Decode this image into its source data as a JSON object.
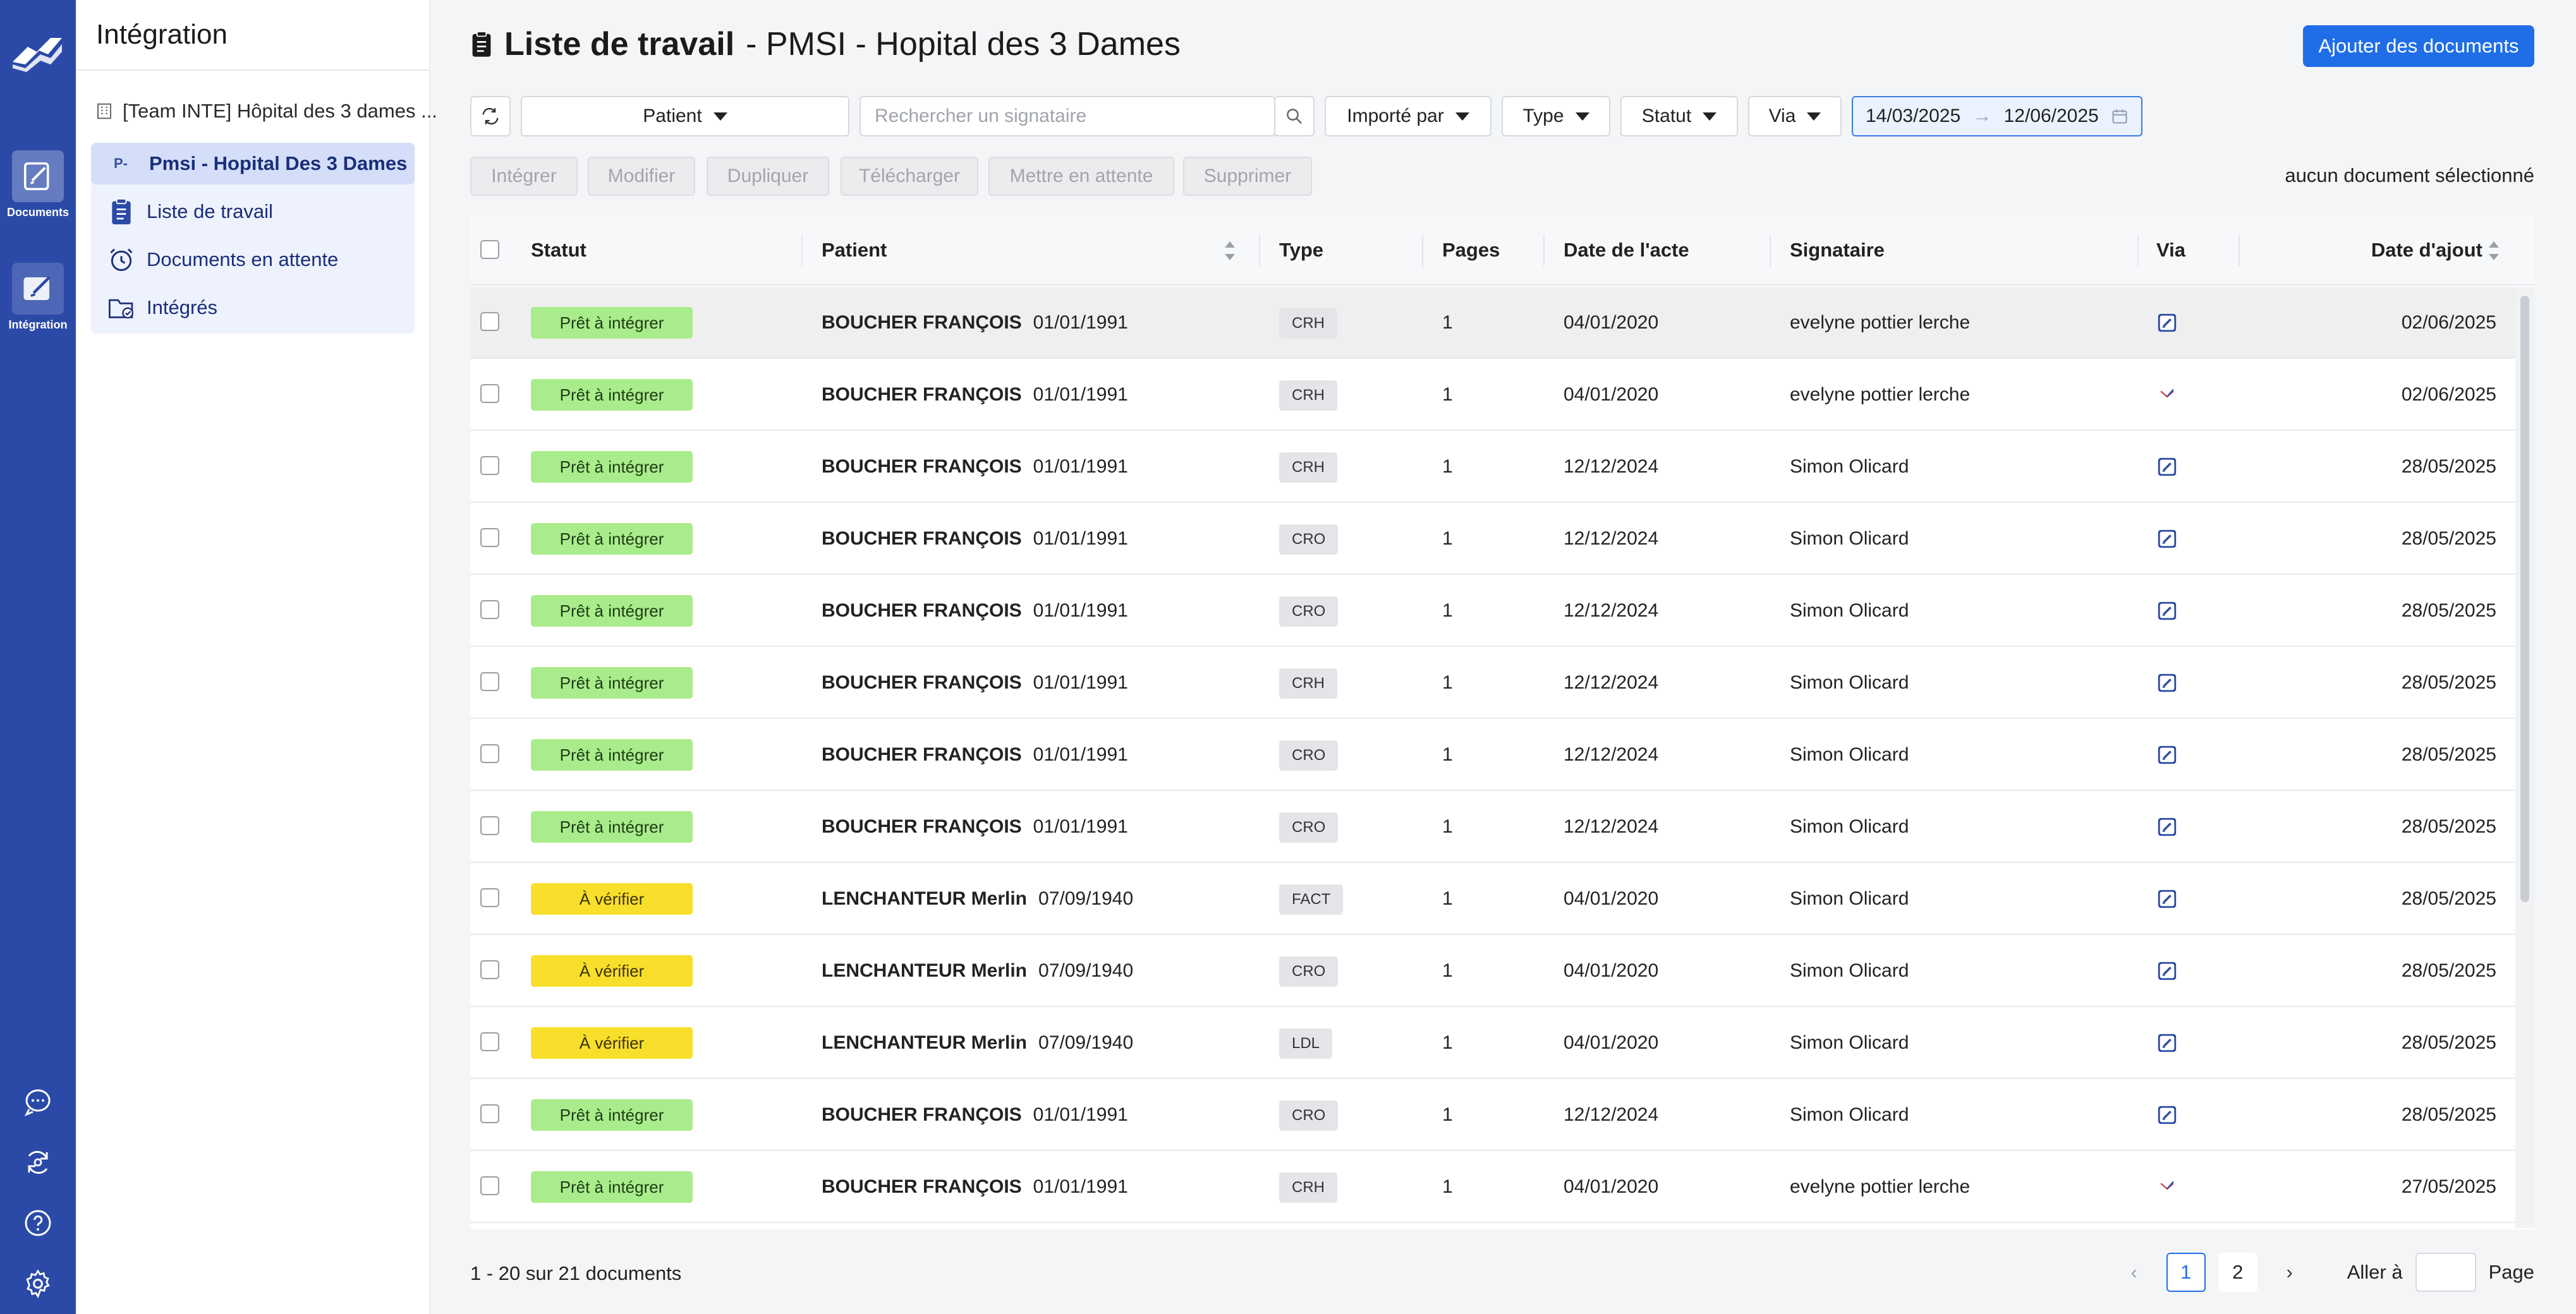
{
  "rail": {
    "items": [
      {
        "label": "Documents"
      },
      {
        "label": "Intégration"
      }
    ]
  },
  "sidebar": {
    "title": "Intégration",
    "team": "[Team INTE] Hôpital des 3 dames ...",
    "selected_prefix": "P-",
    "selected": "Pmsi - Hopital Des 3 Dames",
    "items": [
      {
        "label": "Liste de travail"
      },
      {
        "label": "Documents en attente"
      },
      {
        "label": "Intégrés"
      }
    ]
  },
  "header": {
    "title_bold": "Liste de travail",
    "title_rest": "- PMSI - Hopital des 3 Dames",
    "add_button": "Ajouter des documents"
  },
  "filters": {
    "patient": "Patient",
    "search_placeholder": "Rechercher un signataire",
    "imported_by": "Importé par",
    "type": "Type",
    "status": "Statut",
    "via": "Via",
    "date_from": "14/03/2025",
    "date_arrow": "→",
    "date_to": "12/06/2025"
  },
  "actions": {
    "integrate": "Intégrer",
    "modify": "Modifier",
    "duplicate": "Dupliquer",
    "download": "Télécharger",
    "hold": "Mettre en attente",
    "delete": "Supprimer",
    "selection_info": "aucun document sélectionné"
  },
  "table": {
    "columns": {
      "status": "Statut",
      "patient": "Patient",
      "type": "Type",
      "pages": "Pages",
      "act_date": "Date de l'acte",
      "signer": "Signataire",
      "via": "Via",
      "added_date": "Date d'ajout"
    },
    "rows": [
      {
        "status": "Prêt à intégrer",
        "status_color": "green",
        "name": "BOUCHER FRANÇOIS",
        "dob": "01/01/1991",
        "type": "CRH",
        "pages": "1",
        "act_date": "04/01/2020",
        "signer": "evelyne pottier lerche",
        "via": "edit-icon",
        "added": "02/06/2025"
      },
      {
        "status": "Prêt à intégrer",
        "status_color": "green",
        "name": "BOUCHER FRANÇOIS",
        "dob": "01/01/1991",
        "type": "CRH",
        "pages": "1",
        "act_date": "04/01/2020",
        "signer": "evelyne pottier lerche",
        "via": "mail-icon",
        "added": "02/06/2025"
      },
      {
        "status": "Prêt à intégrer",
        "status_color": "green",
        "name": "BOUCHER FRANÇOIS",
        "dob": "01/01/1991",
        "type": "CRH",
        "pages": "1",
        "act_date": "12/12/2024",
        "signer": "Simon Olicard",
        "via": "edit-icon",
        "added": "28/05/2025"
      },
      {
        "status": "Prêt à intégrer",
        "status_color": "green",
        "name": "BOUCHER FRANÇOIS",
        "dob": "01/01/1991",
        "type": "CRO",
        "pages": "1",
        "act_date": "12/12/2024",
        "signer": "Simon Olicard",
        "via": "edit-icon",
        "added": "28/05/2025"
      },
      {
        "status": "Prêt à intégrer",
        "status_color": "green",
        "name": "BOUCHER FRANÇOIS",
        "dob": "01/01/1991",
        "type": "CRO",
        "pages": "1",
        "act_date": "12/12/2024",
        "signer": "Simon Olicard",
        "via": "edit-icon",
        "added": "28/05/2025"
      },
      {
        "status": "Prêt à intégrer",
        "status_color": "green",
        "name": "BOUCHER FRANÇOIS",
        "dob": "01/01/1991",
        "type": "CRH",
        "pages": "1",
        "act_date": "12/12/2024",
        "signer": "Simon Olicard",
        "via": "edit-icon",
        "added": "28/05/2025"
      },
      {
        "status": "Prêt à intégrer",
        "status_color": "green",
        "name": "BOUCHER FRANÇOIS",
        "dob": "01/01/1991",
        "type": "CRO",
        "pages": "1",
        "act_date": "12/12/2024",
        "signer": "Simon Olicard",
        "via": "edit-icon",
        "added": "28/05/2025"
      },
      {
        "status": "Prêt à intégrer",
        "status_color": "green",
        "name": "BOUCHER FRANÇOIS",
        "dob": "01/01/1991",
        "type": "CRO",
        "pages": "1",
        "act_date": "12/12/2024",
        "signer": "Simon Olicard",
        "via": "edit-icon",
        "added": "28/05/2025"
      },
      {
        "status": "À vérifier",
        "status_color": "yellow",
        "name": "LENCHANTEUR Merlin",
        "dob": "07/09/1940",
        "type": "FACT",
        "pages": "1",
        "act_date": "04/01/2020",
        "signer": "Simon Olicard",
        "via": "edit-icon",
        "added": "28/05/2025"
      },
      {
        "status": "À vérifier",
        "status_color": "yellow",
        "name": "LENCHANTEUR Merlin",
        "dob": "07/09/1940",
        "type": "CRO",
        "pages": "1",
        "act_date": "04/01/2020",
        "signer": "Simon Olicard",
        "via": "edit-icon",
        "added": "28/05/2025"
      },
      {
        "status": "À vérifier",
        "status_color": "yellow",
        "name": "LENCHANTEUR Merlin",
        "dob": "07/09/1940",
        "type": "LDL",
        "pages": "1",
        "act_date": "04/01/2020",
        "signer": "Simon Olicard",
        "via": "edit-icon",
        "added": "28/05/2025"
      },
      {
        "status": "Prêt à intégrer",
        "status_color": "green",
        "name": "BOUCHER FRANÇOIS",
        "dob": "01/01/1991",
        "type": "CRO",
        "pages": "1",
        "act_date": "12/12/2024",
        "signer": "Simon Olicard",
        "via": "edit-icon",
        "added": "28/05/2025"
      },
      {
        "status": "Prêt à intégrer",
        "status_color": "green",
        "name": "BOUCHER FRANÇOIS",
        "dob": "01/01/1991",
        "type": "CRH",
        "pages": "1",
        "act_date": "04/01/2020",
        "signer": "evelyne pottier lerche",
        "via": "mail-icon",
        "added": "27/05/2025"
      }
    ]
  },
  "footer": {
    "count": "1 - 20 sur 21 documents",
    "page_current": "1",
    "page_next": "2",
    "goto_label": "Aller à",
    "page_label": "Page"
  },
  "colors": {
    "rail": "#2b4aa8",
    "primary": "#1f6ee8",
    "status_green": "#a9ec8c",
    "status_yellow": "#f8df2c"
  }
}
